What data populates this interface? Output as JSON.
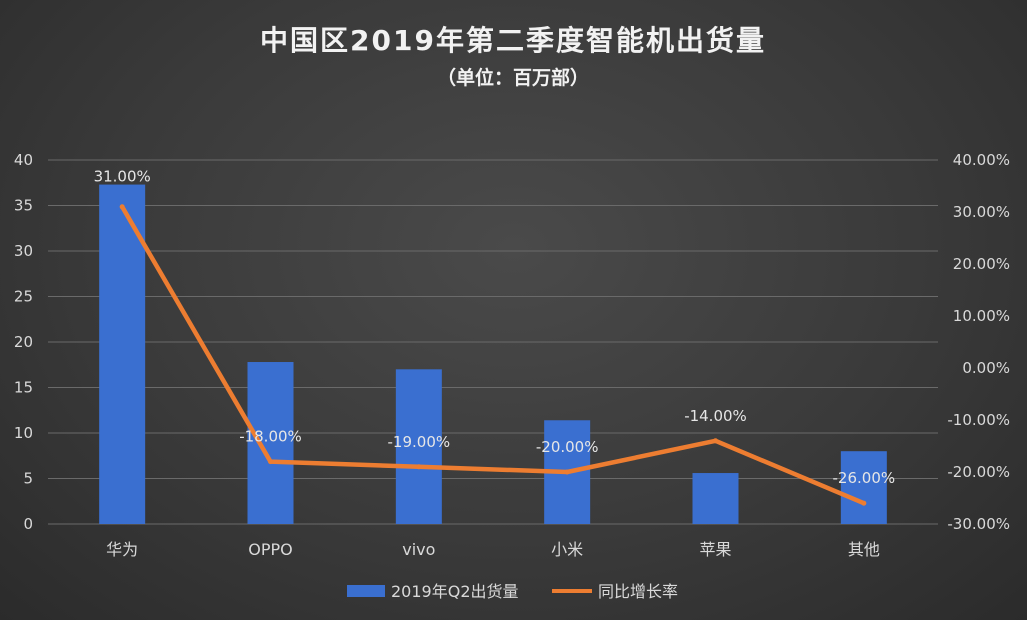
{
  "chart_data": {
    "type": "bar+line",
    "title": "中国区2019年第二季度智能机出货量",
    "subtitle": "（单位：百万部）",
    "categories": [
      "华为",
      "OPPO",
      "vivo",
      "小米",
      "苹果",
      "其他"
    ],
    "series": [
      {
        "name": "2019年Q2出货量",
        "type": "bar",
        "axis": "left",
        "values": [
          37.3,
          17.8,
          17.0,
          11.4,
          5.6,
          8.0
        ],
        "color": "#3a6fd0"
      },
      {
        "name": "同比增长率",
        "type": "line",
        "axis": "right",
        "values": [
          31,
          -18,
          -19,
          -20,
          -14,
          -26
        ],
        "labels": [
          "31.00%",
          "-18.00%",
          "-19.00%",
          "-20.00%",
          "-14.00%",
          "-26.00%"
        ],
        "color": "#ed7d31"
      }
    ],
    "y_left": {
      "min": 0,
      "max": 40,
      "step": 5,
      "ticks": [
        "0",
        "5",
        "10",
        "15",
        "20",
        "25",
        "30",
        "35",
        "40"
      ]
    },
    "y_right": {
      "min": -30,
      "max": 40,
      "step": 10,
      "ticks": [
        "-30.00%",
        "-20.00%",
        "-10.00%",
        "0.00%",
        "10.00%",
        "20.00%",
        "30.00%",
        "40.00%"
      ]
    },
    "grid": true,
    "legend_position": "bottom"
  }
}
